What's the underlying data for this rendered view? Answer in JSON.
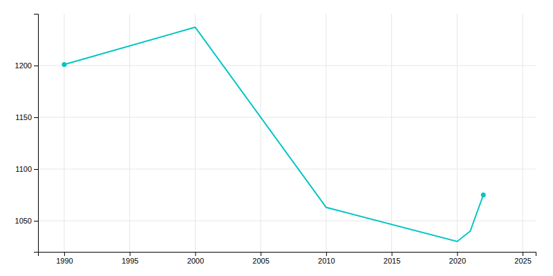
{
  "chart_data": {
    "type": "line",
    "x": [
      1990,
      2000,
      2010,
      2020,
      2021,
      2022
    ],
    "values": [
      1201,
      1237,
      1063,
      1030,
      1040,
      1075
    ],
    "color": "#00C5C5",
    "xlim": [
      1988,
      2026
    ],
    "ylim": [
      1020,
      1250
    ],
    "xticks": [
      1990,
      1995,
      2000,
      2005,
      2010,
      2015,
      2020,
      2025
    ],
    "yticks": [
      1050,
      1100,
      1150,
      1200
    ],
    "grid": true
  }
}
